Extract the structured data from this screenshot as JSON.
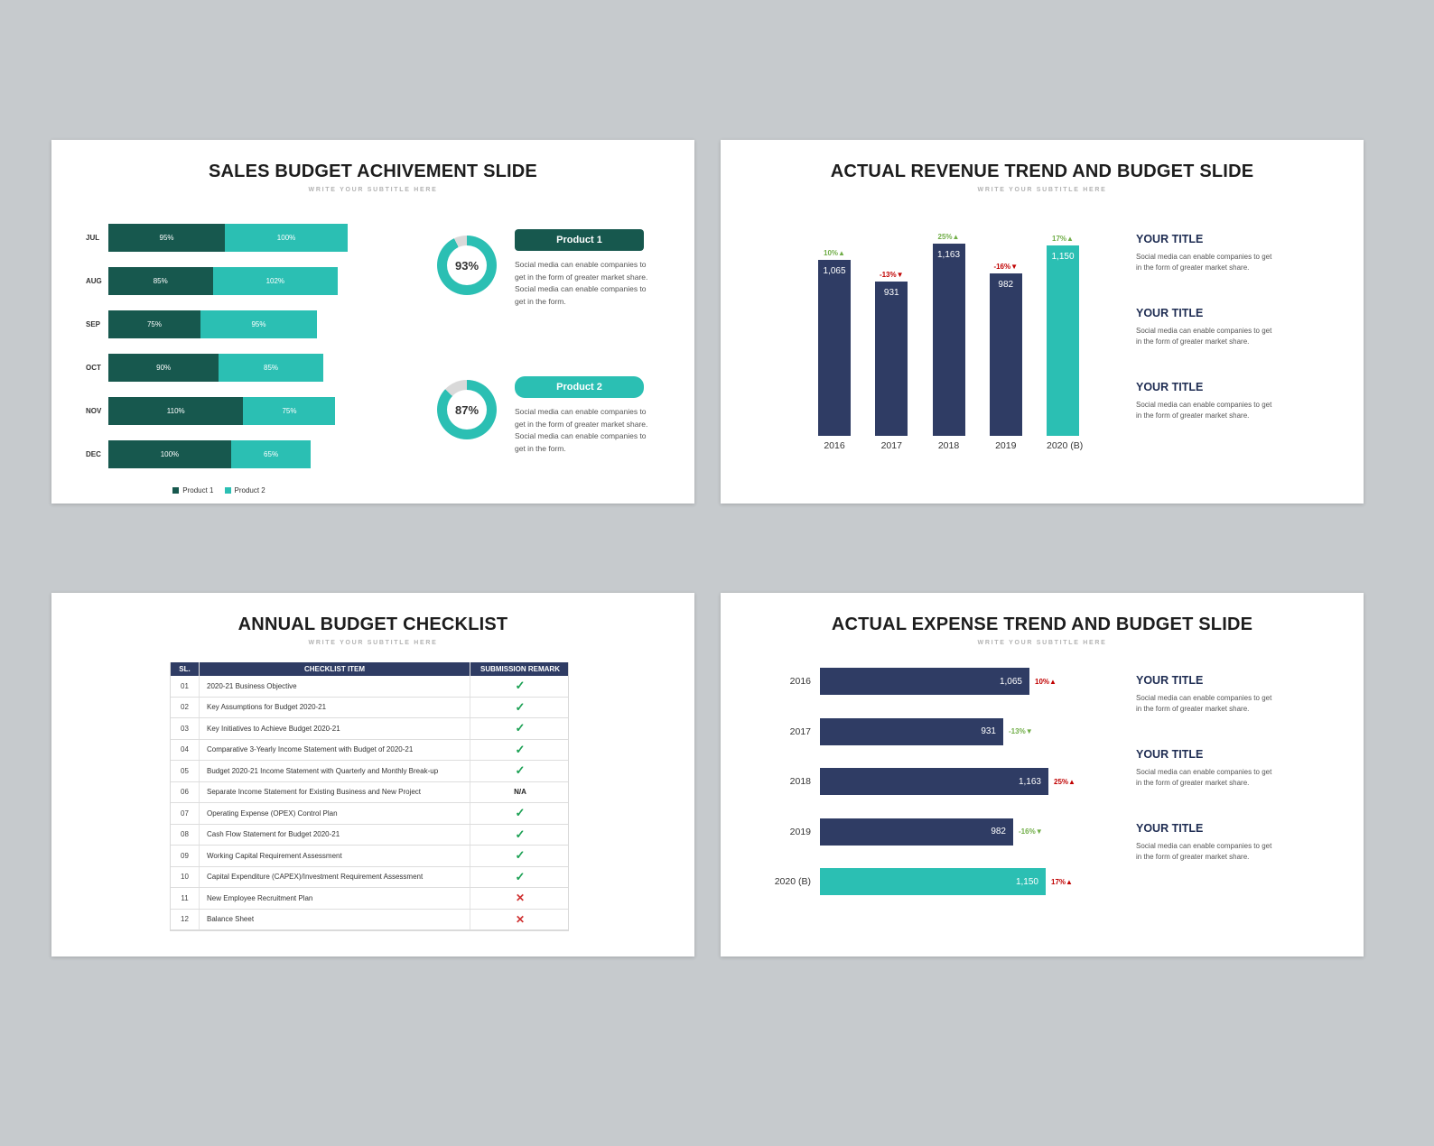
{
  "background": "#c6cacd",
  "colors": {
    "navy": "#2f3c64",
    "dark_teal": "#17584e",
    "teal": "#2bbfb3",
    "green": "#70ad47",
    "red": "#c00000",
    "gray_ring": "#d9d9d9"
  },
  "slide1": {
    "title": "SALES BUDGET ACHIVEMENT SLIDE",
    "subtitle": "WRITE YOUR SUBTITLE HERE",
    "legend": [
      {
        "label": "Product 1",
        "color": "#17584e"
      },
      {
        "label": "Product 2",
        "color": "#2bbfb3"
      }
    ],
    "products": [
      {
        "name": "Product 1",
        "percent": 93,
        "percent_label": "93%",
        "box_color": "#17584e",
        "donut_color": "#2bbfb3",
        "text": "Social media can enable companies to get in the form of greater market share. Social media can enable companies to get in the form."
      },
      {
        "name": "Product 2",
        "percent": 87,
        "percent_label": "87%",
        "box_color": "#2bbfb3",
        "donut_color": "#2bbfb3",
        "text": "Social media can enable companies to get in the form of greater market share. Social media can enable companies to get in the form."
      }
    ]
  },
  "slide2": {
    "title": "ACTUAL REVENUE TREND AND BUDGET SLIDE",
    "subtitle": "WRITE YOUR SUBTITLE HERE",
    "notes": [
      {
        "title": "YOUR TITLE",
        "text": "Social media can enable companies to get in the form of greater market share."
      },
      {
        "title": "YOUR TITLE",
        "text": "Social media can enable companies to get in the form of greater market share."
      },
      {
        "title": "YOUR TITLE",
        "text": "Social media can enable companies to get in the form of greater market share."
      }
    ]
  },
  "slide3": {
    "title": "ANNUAL BUDGET CHECKLIST",
    "subtitle": "WRITE YOUR SUBTITLE HERE",
    "table": {
      "headers": [
        "SL.",
        "CHECKLIST ITEM",
        "SUBMISSION REMARK"
      ],
      "rows": [
        {
          "sl": "01",
          "item": "2020-21 Business Objective",
          "remark": "check"
        },
        {
          "sl": "02",
          "item": "Key Assumptions for Budget 2020-21",
          "remark": "check"
        },
        {
          "sl": "03",
          "item": "Key Initiatives to Achieve Budget 2020-21",
          "remark": "check"
        },
        {
          "sl": "04",
          "item": "Comparative 3-Yearly Income Statement with Budget of 2020-21",
          "remark": "check"
        },
        {
          "sl": "05",
          "item": "Budget 2020-21 Income Statement with Quarterly and Monthly Break-up",
          "remark": "check"
        },
        {
          "sl": "06",
          "item": "Separate Income Statement for Existing Business and New Project",
          "remark": "N/A"
        },
        {
          "sl": "07",
          "item": "Operating Expense (OPEX) Control Plan",
          "remark": "check"
        },
        {
          "sl": "08",
          "item": "Cash Flow Statement for Budget 2020-21",
          "remark": "check"
        },
        {
          "sl": "09",
          "item": "Working Capital Requirement Assessment",
          "remark": "check"
        },
        {
          "sl": "10",
          "item": "Capital Expenditure (CAPEX)/Investment Requirement Assessment",
          "remark": "check"
        },
        {
          "sl": "11",
          "item": "New Employee Recruitment Plan",
          "remark": "cross"
        },
        {
          "sl": "12",
          "item": "Balance Sheet",
          "remark": "cross"
        }
      ]
    }
  },
  "slide4": {
    "title": "ACTUAL EXPENSE TREND AND BUDGET SLIDE",
    "subtitle": "WRITE YOUR SUBTITLE HERE",
    "notes": [
      {
        "title": "YOUR TITLE",
        "text": "Social media can enable companies to get in the form of greater market share."
      },
      {
        "title": "YOUR TITLE",
        "text": "Social media can enable companies to get in the form of greater market share."
      },
      {
        "title": "YOUR TITLE",
        "text": "Social media can enable companies to get in the form of greater market share."
      }
    ]
  },
  "chart_data": [
    {
      "slide": 1,
      "type": "bar",
      "orientation": "horizontal-stacked",
      "title": "SALES BUDGET ACHIVEMENT SLIDE",
      "categories": [
        "JUL",
        "AUG",
        "SEP",
        "OCT",
        "NOV",
        "DEC"
      ],
      "series": [
        {
          "name": "Product 1",
          "color": "#17584e",
          "values": [
            95,
            85,
            75,
            90,
            110,
            100
          ],
          "labels": [
            "95%",
            "85%",
            "75%",
            "90%",
            "110%",
            "100%"
          ]
        },
        {
          "name": "Product 2",
          "color": "#2bbfb3",
          "values": [
            100,
            102,
            95,
            85,
            75,
            65
          ],
          "labels": [
            "100%",
            "102%",
            "95%",
            "85%",
            "75%",
            "65%"
          ]
        }
      ],
      "legend_position": "bottom"
    },
    {
      "slide": 2,
      "type": "bar",
      "orientation": "vertical",
      "title": "ACTUAL REVENUE TREND AND BUDGET SLIDE",
      "categories": [
        "2016",
        "2017",
        "2018",
        "2019",
        "2020 (B)"
      ],
      "values": [
        1065,
        931,
        1163,
        982,
        1150
      ],
      "value_labels": [
        "1,065",
        "931",
        "1,163",
        "982",
        "1,150"
      ],
      "bar_colors": [
        "#2f3c64",
        "#2f3c64",
        "#2f3c64",
        "#2f3c64",
        "#2bbfb3"
      ],
      "changes": [
        {
          "label": "10%",
          "arrow": "▲",
          "color": "#70ad47"
        },
        {
          "label": "-13%",
          "arrow": "▼",
          "color": "#c00000"
        },
        {
          "label": "25%",
          "arrow": "▲",
          "color": "#70ad47"
        },
        {
          "label": "-16%",
          "arrow": "▼",
          "color": "#c00000"
        },
        {
          "label": "17%",
          "arrow": "▲",
          "color": "#70ad47"
        }
      ]
    },
    {
      "slide": 4,
      "type": "bar",
      "orientation": "horizontal",
      "title": "ACTUAL EXPENSE TREND AND BUDGET SLIDE",
      "categories": [
        "2016",
        "2017",
        "2018",
        "2019",
        "2020 (B)"
      ],
      "values": [
        1065,
        931,
        1163,
        982,
        1150
      ],
      "value_labels": [
        "1,065",
        "931",
        "1,163",
        "982",
        "1,150"
      ],
      "bar_colors": [
        "#2f3c64",
        "#2f3c64",
        "#2f3c64",
        "#2f3c64",
        "#2bbfb3"
      ],
      "changes": [
        {
          "label": "10%",
          "arrow": "▲",
          "color": "#c00000"
        },
        {
          "label": "-13%",
          "arrow": "▼",
          "color": "#70ad47"
        },
        {
          "label": "25%",
          "arrow": "▲",
          "color": "#c00000"
        },
        {
          "label": "-16%",
          "arrow": "▼",
          "color": "#70ad47"
        },
        {
          "label": "17%",
          "arrow": "▲",
          "color": "#c00000"
        }
      ]
    }
  ]
}
